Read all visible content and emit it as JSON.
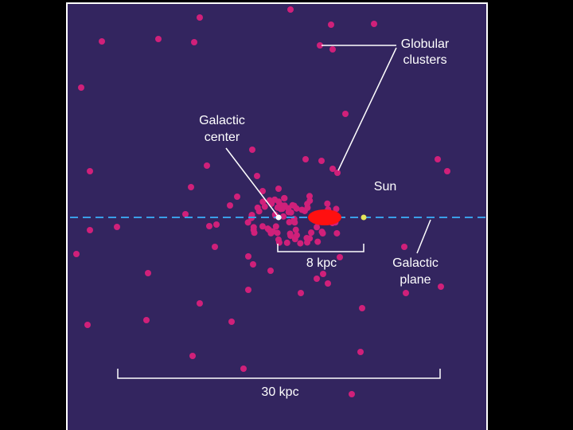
{
  "labels": {
    "globular_clusters": [
      "Globular",
      "clusters"
    ],
    "galactic_center": [
      "Galactic",
      "center"
    ],
    "sun": "Sun",
    "galactic_plane": [
      "Galactic",
      "plane"
    ],
    "scale_small": "8 kpc",
    "scale_large": "30 kpc"
  }
}
